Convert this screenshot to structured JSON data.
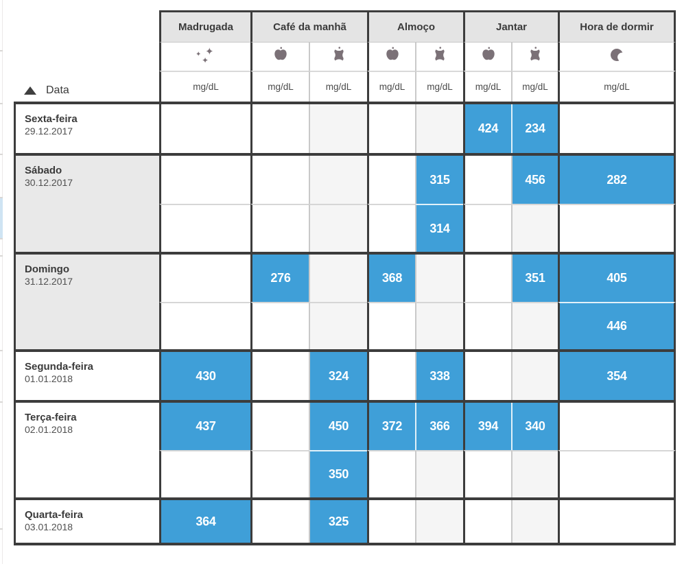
{
  "unit": "mg/dL",
  "sort_header": {
    "label": "Data",
    "direction": "ascending"
  },
  "groups": [
    {
      "label": "Madrugada",
      "cols": [
        {
          "key": "madrugada",
          "icon": "sparkles-icon"
        }
      ]
    },
    {
      "label": "Café da manhã",
      "cols": [
        {
          "key": "cafe_before",
          "icon": "apple-icon"
        },
        {
          "key": "cafe_after",
          "icon": "apple-core-icon"
        }
      ]
    },
    {
      "label": "Almoço",
      "cols": [
        {
          "key": "almoco_before",
          "icon": "apple-icon"
        },
        {
          "key": "almoco_after",
          "icon": "apple-core-icon"
        }
      ]
    },
    {
      "label": "Jantar",
      "cols": [
        {
          "key": "jantar_before",
          "icon": "apple-icon"
        },
        {
          "key": "jantar_after",
          "icon": "apple-core-icon"
        }
      ]
    },
    {
      "label": "Hora de dormir",
      "cols": [
        {
          "key": "dormir",
          "icon": "moon-icon"
        }
      ]
    }
  ],
  "rows": [
    {
      "day": "Sexta-feira",
      "date": "29.12.2017",
      "weekend": false,
      "values": [
        [
          null,
          null,
          null,
          null,
          null,
          "424",
          "234",
          null
        ]
      ]
    },
    {
      "day": "Sábado",
      "date": "30.12.2017",
      "weekend": true,
      "values": [
        [
          null,
          null,
          null,
          null,
          "315",
          null,
          "456",
          "282"
        ],
        [
          null,
          null,
          null,
          null,
          "314",
          null,
          null,
          null
        ]
      ]
    },
    {
      "day": "Domingo",
      "date": "31.12.2017",
      "weekend": true,
      "values": [
        [
          null,
          "276",
          null,
          "368",
          null,
          null,
          "351",
          "405"
        ],
        [
          null,
          null,
          null,
          null,
          null,
          null,
          null,
          "446"
        ]
      ]
    },
    {
      "day": "Segunda-feira",
      "date": "01.01.2018",
      "weekend": false,
      "values": [
        [
          "430",
          null,
          "324",
          null,
          "338",
          null,
          null,
          "354"
        ]
      ]
    },
    {
      "day": "Terça-feira",
      "date": "02.01.2018",
      "weekend": false,
      "values": [
        [
          "437",
          null,
          "450",
          "372",
          "366",
          "394",
          "340",
          null
        ],
        [
          null,
          null,
          "350",
          null,
          null,
          null,
          null,
          null
        ]
      ]
    },
    {
      "day": "Quarta-feira",
      "date": "03.01.2018",
      "weekend": false,
      "values": [
        [
          "364",
          null,
          "325",
          null,
          null,
          null,
          null,
          null
        ]
      ]
    }
  ],
  "colors": {
    "accent_blue": "#3f9fd8",
    "grid_dark": "#3c3c3c",
    "grid_light": "#c9c9c9",
    "header_bg": "#e4e4e4",
    "weekend_bg": "#e9e9e9",
    "after_meal_bg": "#f5f5f5",
    "icon": "#7b7177"
  }
}
